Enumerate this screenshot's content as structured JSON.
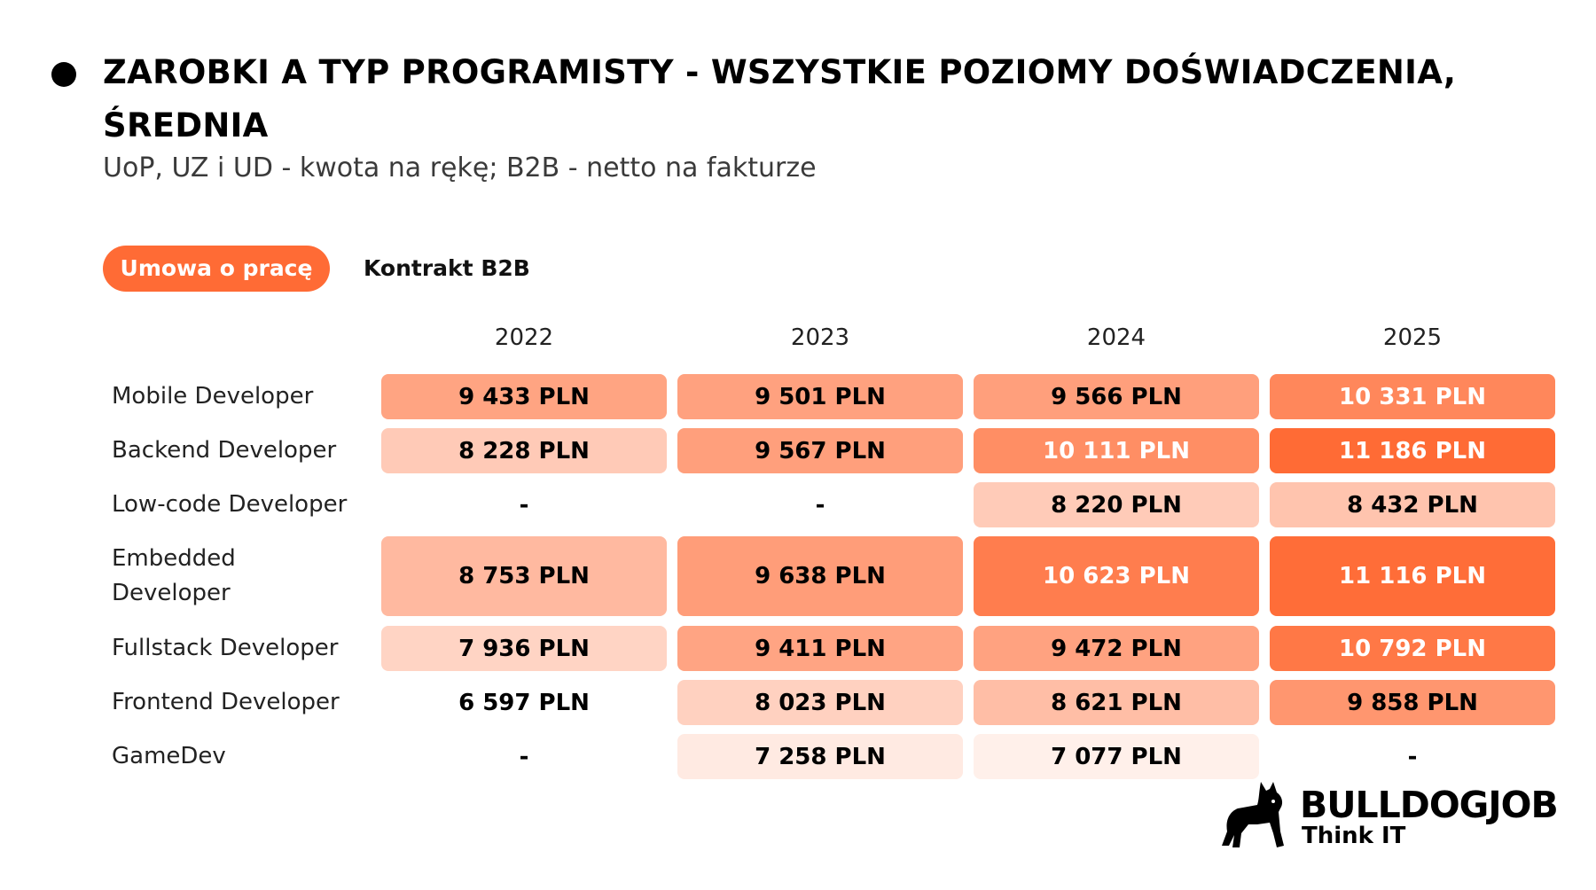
{
  "header": {
    "title": "ZAROBKI A TYP PROGRAMISTY - WSZYSTKIE POZIOMY DOŚWIADCZENIA, ŚREDNIA",
    "subtitle": "UoP, UZ i UD - kwota na rękę; B2B - netto na fakturze"
  },
  "tabs": [
    {
      "label": "Umowa o pracę",
      "active": true
    },
    {
      "label": "Kontrakt B2B",
      "active": false
    }
  ],
  "colors": {
    "accent": "#ff6b35",
    "scale_low": "#ffffff",
    "scale_high": "#ff6b35"
  },
  "chart_data": {
    "type": "heatmap",
    "unit": "PLN",
    "columns": [
      "2022",
      "2023",
      "2024",
      "2025"
    ],
    "rows": [
      {
        "label": "Mobile Developer",
        "values": [
          9433,
          9501,
          9566,
          10331
        ],
        "display": [
          "9 433 PLN",
          "9 501 PLN",
          "9 566 PLN",
          "10 331 PLN"
        ]
      },
      {
        "label": "Backend Developer",
        "values": [
          8228,
          9567,
          10111,
          11186
        ],
        "display": [
          "8 228 PLN",
          "9 567 PLN",
          "10 111 PLN",
          "11 186 PLN"
        ]
      },
      {
        "label": "Low-code Developer",
        "values": [
          null,
          null,
          8220,
          8432
        ],
        "display": [
          "-",
          "-",
          "8 220 PLN",
          "8 432 PLN"
        ]
      },
      {
        "label": "Embedded Developer",
        "values": [
          8753,
          9638,
          10623,
          11116
        ],
        "display": [
          "8 753 PLN",
          "9 638 PLN",
          "10 623 PLN",
          "11 116 PLN"
        ]
      },
      {
        "label": "Fullstack Developer",
        "values": [
          7936,
          9411,
          9472,
          10792
        ],
        "display": [
          "7 936 PLN",
          "9 411 PLN",
          "9 472 PLN",
          "10 792 PLN"
        ]
      },
      {
        "label": "Frontend Developer",
        "values": [
          6597,
          8023,
          8621,
          9858
        ],
        "display": [
          "6 597 PLN",
          "8 023 PLN",
          "8 621 PLN",
          "9 858 PLN"
        ]
      },
      {
        "label": "GameDev",
        "values": [
          null,
          7258,
          7077,
          null
        ],
        "display": [
          "-",
          "7 258 PLN",
          "7 077 PLN",
          "-"
        ]
      }
    ]
  },
  "logo": {
    "name": "BULLDOGJOB",
    "tagline": "Think IT",
    "icon": "bulldog-icon"
  }
}
